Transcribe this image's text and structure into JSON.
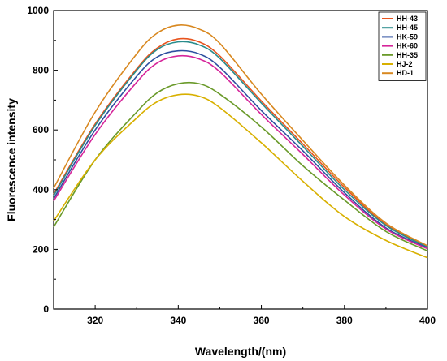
{
  "chart_data": {
    "type": "line",
    "xlabel": "Wavelength/(nm)",
    "ylabel": "Fluorescence intensity",
    "xlim": [
      310,
      400
    ],
    "ylim": [
      0,
      1000
    ],
    "x_ticks": [
      320,
      340,
      360,
      380,
      400
    ],
    "y_ticks": [
      0,
      200,
      400,
      600,
      800,
      1000
    ],
    "grid": false,
    "legend_position": "top-right",
    "x": [
      310,
      320,
      330,
      335,
      340,
      345,
      350,
      360,
      370,
      380,
      390,
      400
    ],
    "series": [
      {
        "name": "HH-43",
        "color": "#e8541e",
        "values": [
          385,
          620,
          805,
          875,
          905,
          895,
          848,
          697,
          553,
          408,
          283,
          210
        ]
      },
      {
        "name": "HH-45",
        "color": "#2a8c8c",
        "values": [
          380,
          615,
          800,
          870,
          895,
          885,
          840,
          690,
          545,
          400,
          280,
          208
        ]
      },
      {
        "name": "HK-59",
        "color": "#2d4fa0",
        "values": [
          370,
          600,
          780,
          845,
          865,
          855,
          810,
          665,
          530,
          390,
          272,
          205
        ]
      },
      {
        "name": "HK-60",
        "color": "#d6259a",
        "values": [
          362,
          585,
          760,
          825,
          848,
          838,
          795,
          652,
          518,
          382,
          268,
          202
        ]
      },
      {
        "name": "HH-35",
        "color": "#6a9a2a",
        "values": [
          275,
          500,
          660,
          725,
          755,
          755,
          720,
          610,
          480,
          365,
          260,
          195
        ]
      },
      {
        "name": "HJ-2",
        "color": "#d8b000",
        "values": [
          295,
          500,
          640,
          695,
          718,
          713,
          675,
          557,
          428,
          310,
          230,
          172
        ]
      },
      {
        "name": "HD-1",
        "color": "#d88820",
        "values": [
          405,
          660,
          855,
          925,
          951,
          938,
          890,
          720,
          565,
          415,
          288,
          212
        ]
      }
    ]
  }
}
